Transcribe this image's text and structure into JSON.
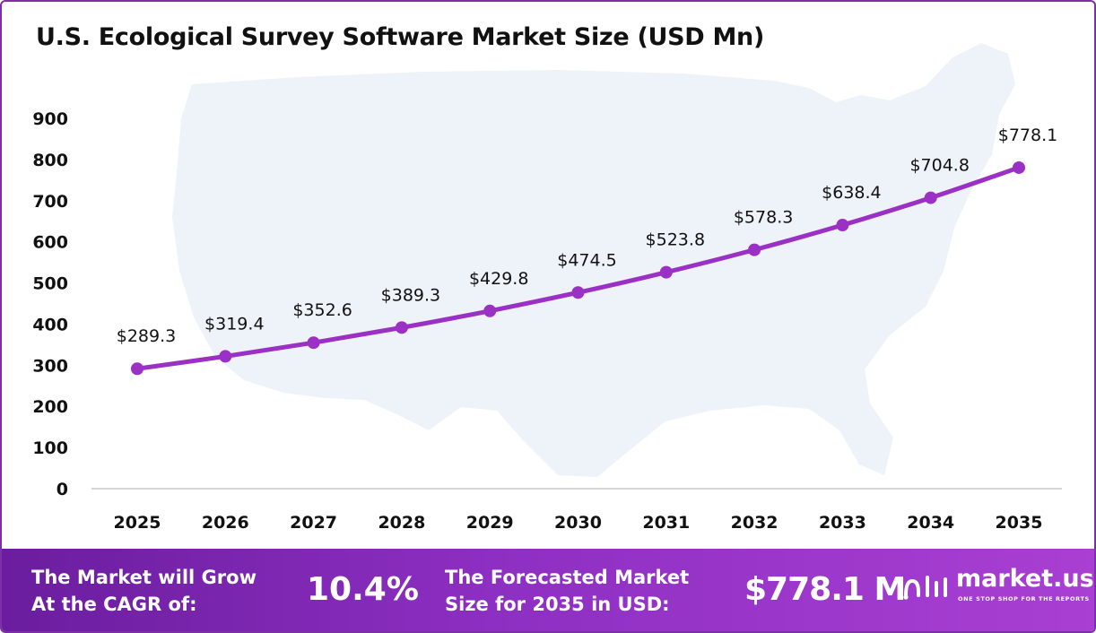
{
  "chart_data": {
    "type": "line",
    "title": "U.S. Ecological Survey Software Market Size (USD Mn)",
    "categories": [
      "2025",
      "2026",
      "2027",
      "2028",
      "2029",
      "2030",
      "2031",
      "2032",
      "2033",
      "2034",
      "2035"
    ],
    "series": [
      {
        "values": [
          289.3,
          319.4,
          352.6,
          389.3,
          429.8,
          474.5,
          523.8,
          578.3,
          638.4,
          704.8,
          778.1
        ],
        "labels": [
          "$289.3",
          "$319.4",
          "$352.6",
          "$389.3",
          "$429.8",
          "$474.5",
          "$523.8",
          "$578.3",
          "$638.4",
          "$704.8",
          "$778.1"
        ],
        "color": "#9b30c4"
      }
    ],
    "yticks": [
      "0",
      "100",
      "200",
      "300",
      "400",
      "500",
      "600",
      "700",
      "800",
      "900"
    ],
    "ylim": [
      0,
      900
    ],
    "grid": false,
    "xlabel": "",
    "ylabel": ""
  },
  "footer": {
    "cagr_label_line1": "The Market will Grow",
    "cagr_label_line2": "At the CAGR of:",
    "cagr_value": "10.4%",
    "forecast_label_line1": "The Forecasted Market",
    "forecast_label_line2": "Size for 2035 in USD:",
    "forecast_value": "$778.1 M",
    "brand_name": "market.us",
    "brand_tagline": "ONE STOP SHOP FOR THE REPORTS"
  },
  "colors": {
    "line": "#9b30c4",
    "footer_start": "#6a1d9e",
    "footer_end": "#a93fd3",
    "map_background": "#eef2f9"
  },
  "icons": {
    "background": "usa-map-silhouette",
    "brand": "market-us-logo-icon"
  }
}
